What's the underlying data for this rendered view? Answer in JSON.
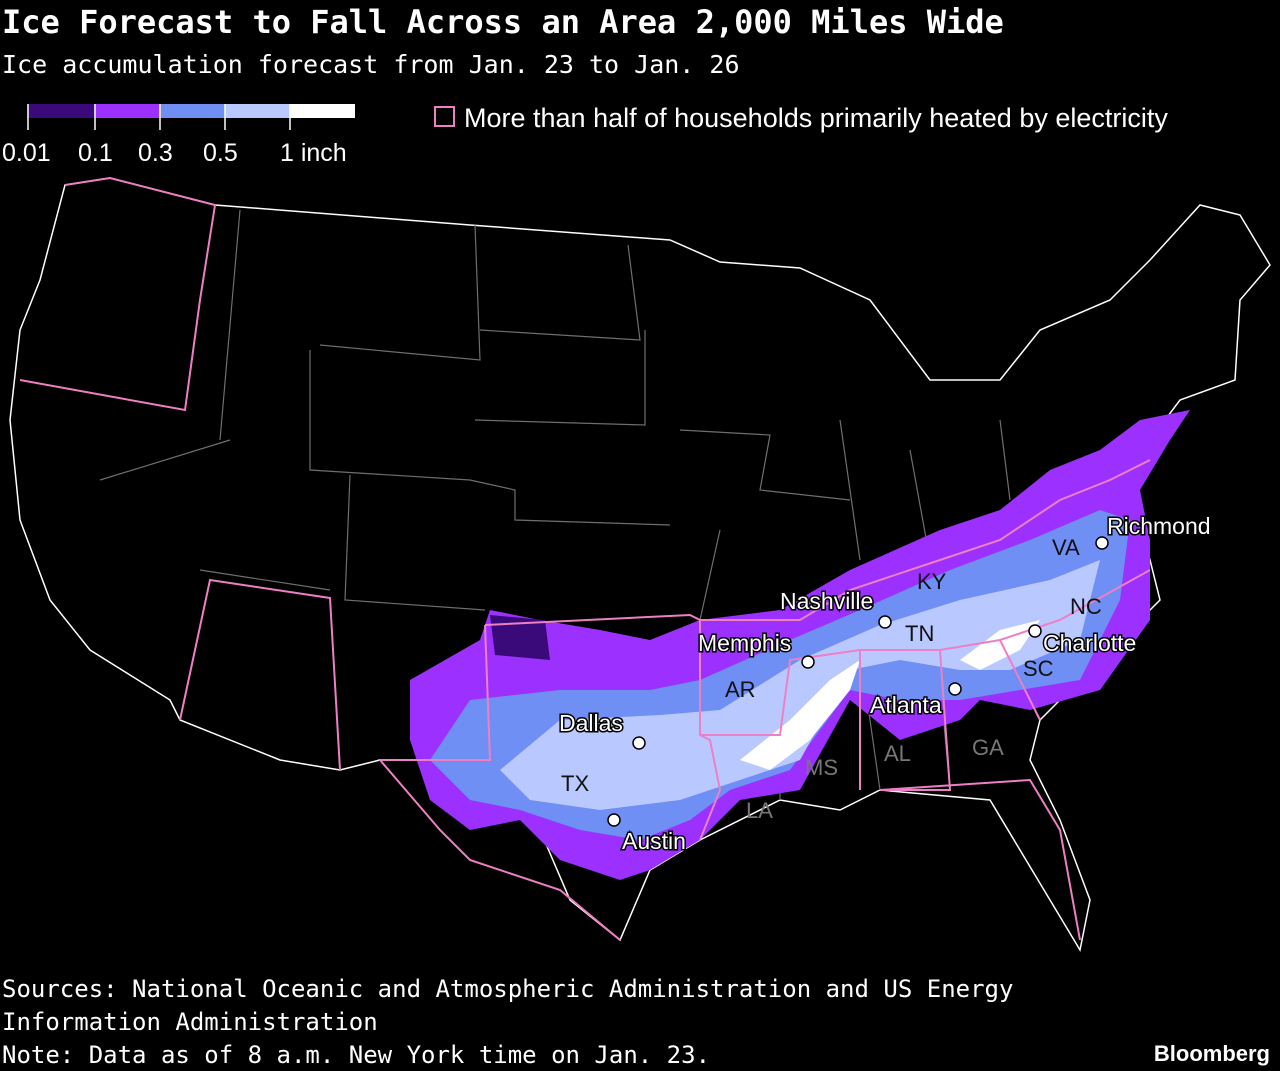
{
  "header": {
    "title": "Ice Forecast to Fall Across an Area 2,000 Miles Wide",
    "subtitle": "Ice accumulation forecast from Jan. 23 to Jan. 26"
  },
  "legend": {
    "ticks": [
      "0.01",
      "0.1",
      "0.3",
      "0.5",
      "1 inch"
    ],
    "border_label": "More than half of households primarily heated by electricity"
  },
  "cities": [
    "Richmond",
    "Nashville",
    "Memphis",
    "Dallas",
    "Austin",
    "Atlanta",
    "Charlotte"
  ],
  "states": [
    "VA",
    "KY",
    "TN",
    "NC",
    "AR",
    "TX",
    "SC",
    "AL",
    "GA",
    "MS",
    "LA"
  ],
  "footer": {
    "source_line1": "Sources: National Oceanic and Atmospheric Administration and US Energy",
    "source_line2": "Information Administration",
    "note": "Note: Data as of 8 a.m. New York time on Jan. 23.",
    "brand": "Bloomberg"
  }
}
